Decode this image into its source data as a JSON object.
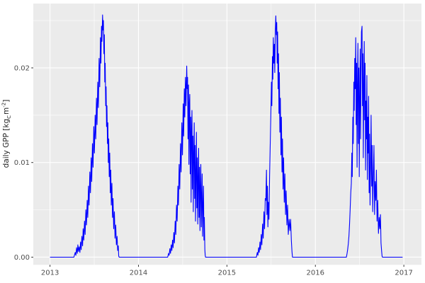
{
  "chart_data": {
    "type": "line",
    "title": "",
    "xlabel": "",
    "ylabel": "daily GPP [kg_C m^-2]",
    "ylabel_parts": {
      "pre": "daily GPP [kg",
      "sub": "C",
      "mid": "m",
      "sup": "-2",
      "post": "]"
    },
    "x_tick_labels": [
      "2013",
      "2014",
      "2015",
      "2016",
      "2017"
    ],
    "x_tick_values": [
      2013,
      2014,
      2015,
      2016,
      2017
    ],
    "x_minor_values": [
      2013.5,
      2014.5,
      2015.5,
      2016.5
    ],
    "y_tick_labels": [
      "0.00",
      "0.01",
      "0.02"
    ],
    "y_tick_values": [
      0,
      0.01,
      0.02
    ],
    "y_minor_values": [
      0.005,
      0.015,
      0.025
    ],
    "xlim": [
      2012.811,
      2017.199
    ],
    "ylim": [
      -0.00081,
      0.0268
    ],
    "grid": "on",
    "legend": "none",
    "colors": {
      "line": "#0000FF",
      "panel_bg": "#EBEBEB",
      "grid": "#FFFFFF",
      "tick_text": "#4D4D4D",
      "tick_mark": "#333333",
      "outer_bg": "#FFFFFF"
    },
    "series": [
      {
        "name": "daily GPP",
        "points": [
          [
            2013.0,
            0
          ],
          [
            2013.27,
            0
          ],
          [
            2013.285,
            0.0005
          ],
          [
            2013.292,
            0.0002
          ],
          [
            2013.3,
            0.001
          ],
          [
            2013.308,
            0.0004
          ],
          [
            2013.315,
            0.0013
          ],
          [
            2013.322,
            0.0006
          ],
          [
            2013.33,
            0.0011
          ],
          [
            2013.338,
            0.0005
          ],
          [
            2013.345,
            0.0016
          ],
          [
            2013.352,
            0.0008
          ],
          [
            2013.36,
            0.0022
          ],
          [
            2013.368,
            0.0012
          ],
          [
            2013.375,
            0.003
          ],
          [
            2013.382,
            0.0018
          ],
          [
            2013.39,
            0.0038
          ],
          [
            2013.397,
            0.0024
          ],
          [
            2013.405,
            0.005
          ],
          [
            2013.412,
            0.0034
          ],
          [
            2013.42,
            0.006
          ],
          [
            2013.427,
            0.0042
          ],
          [
            2013.435,
            0.0075
          ],
          [
            2013.442,
            0.0055
          ],
          [
            2013.45,
            0.009
          ],
          [
            2013.457,
            0.0068
          ],
          [
            2013.465,
            0.0105
          ],
          [
            2013.472,
            0.008
          ],
          [
            2013.48,
            0.012
          ],
          [
            2013.487,
            0.0095
          ],
          [
            2013.495,
            0.0138
          ],
          [
            2013.502,
            0.011
          ],
          [
            2013.51,
            0.015
          ],
          [
            2013.517,
            0.0125
          ],
          [
            2013.525,
            0.0168
          ],
          [
            2013.532,
            0.014
          ],
          [
            2013.54,
            0.0185
          ],
          [
            2013.547,
            0.0158
          ],
          [
            2013.555,
            0.021
          ],
          [
            2013.562,
            0.018
          ],
          [
            2013.57,
            0.0232
          ],
          [
            2013.576,
            0.0205
          ],
          [
            2013.582,
            0.0244
          ],
          [
            2013.587,
            0.0228
          ],
          [
            2013.594,
            0.0256
          ],
          [
            2013.599,
            0.024
          ],
          [
            2013.604,
            0.025
          ],
          [
            2013.609,
            0.0215
          ],
          [
            2013.614,
            0.0235
          ],
          [
            2013.619,
            0.0185
          ],
          [
            2013.624,
            0.0205
          ],
          [
            2013.629,
            0.016
          ],
          [
            2013.634,
            0.018
          ],
          [
            2013.639,
            0.0138
          ],
          [
            2013.644,
            0.016
          ],
          [
            2013.649,
            0.012
          ],
          [
            2013.654,
            0.0142
          ],
          [
            2013.659,
            0.01
          ],
          [
            2013.664,
            0.0125
          ],
          [
            2013.669,
            0.0085
          ],
          [
            2013.675,
            0.011
          ],
          [
            2013.681,
            0.0068
          ],
          [
            2013.687,
            0.0092
          ],
          [
            2013.693,
            0.0055
          ],
          [
            2013.7,
            0.0078
          ],
          [
            2013.706,
            0.0042
          ],
          [
            2013.713,
            0.0062
          ],
          [
            2013.72,
            0.003
          ],
          [
            2013.728,
            0.0048
          ],
          [
            2013.735,
            0.002
          ],
          [
            2013.743,
            0.0034
          ],
          [
            2013.75,
            0.0013
          ],
          [
            2013.758,
            0.0022
          ],
          [
            2013.765,
            0.0007
          ],
          [
            2013.772,
            0.0012
          ],
          [
            2013.777,
            0.0001
          ],
          [
            2013.782,
            0
          ],
          [
            2014.33,
            0
          ],
          [
            2014.34,
            0.0004
          ],
          [
            2014.347,
            0.0002
          ],
          [
            2014.355,
            0.0009
          ],
          [
            2014.362,
            0.0004
          ],
          [
            2014.37,
            0.0013
          ],
          [
            2014.377,
            0.0007
          ],
          [
            2014.385,
            0.0018
          ],
          [
            2014.392,
            0.001
          ],
          [
            2014.4,
            0.0026
          ],
          [
            2014.407,
            0.0015
          ],
          [
            2014.415,
            0.0038
          ],
          [
            2014.422,
            0.0024
          ],
          [
            2014.43,
            0.0055
          ],
          [
            2014.437,
            0.0038
          ],
          [
            2014.445,
            0.0075
          ],
          [
            2014.452,
            0.0055
          ],
          [
            2014.46,
            0.0098
          ],
          [
            2014.467,
            0.0072
          ],
          [
            2014.475,
            0.012
          ],
          [
            2014.482,
            0.009
          ],
          [
            2014.49,
            0.0142
          ],
          [
            2014.497,
            0.0108
          ],
          [
            2014.505,
            0.0162
          ],
          [
            2014.511,
            0.0128
          ],
          [
            2014.518,
            0.0178
          ],
          [
            2014.524,
            0.0148
          ],
          [
            2014.531,
            0.019
          ],
          [
            2014.537,
            0.016
          ],
          [
            2014.545,
            0.0202
          ],
          [
            2014.55,
            0.0178
          ],
          [
            2014.555,
            0.019
          ],
          [
            2014.56,
            0.0125
          ],
          [
            2014.565,
            0.0182
          ],
          [
            2014.57,
            0.0098
          ],
          [
            2014.575,
            0.0162
          ],
          [
            2014.58,
            0.0172
          ],
          [
            2014.585,
            0.0088
          ],
          [
            2014.59,
            0.0148
          ],
          [
            2014.595,
            0.0058
          ],
          [
            2014.6,
            0.0132
          ],
          [
            2014.605,
            0.0155
          ],
          [
            2014.61,
            0.0072
          ],
          [
            2014.615,
            0.0128
          ],
          [
            2014.62,
            0.0048
          ],
          [
            2014.625,
            0.0108
          ],
          [
            2014.63,
            0.0142
          ],
          [
            2014.635,
            0.0062
          ],
          [
            2014.64,
            0.0118
          ],
          [
            2014.645,
            0.0038
          ],
          [
            2014.65,
            0.0092
          ],
          [
            2014.655,
            0.0132
          ],
          [
            2014.66,
            0.0052
          ],
          [
            2014.665,
            0.0105
          ],
          [
            2014.67,
            0.0035
          ],
          [
            2014.675,
            0.0085
          ],
          [
            2014.68,
            0.0115
          ],
          [
            2014.685,
            0.0042
          ],
          [
            2014.69,
            0.0095
          ],
          [
            2014.695,
            0.0028
          ],
          [
            2014.7,
            0.0072
          ],
          [
            2014.705,
            0.0098
          ],
          [
            2014.71,
            0.0032
          ],
          [
            2014.715,
            0.0062
          ],
          [
            2014.72,
            0.0088
          ],
          [
            2014.725,
            0.0022
          ],
          [
            2014.73,
            0.0055
          ],
          [
            2014.735,
            0.0075
          ],
          [
            2014.74,
            0.0018
          ],
          [
            2014.745,
            0.0042
          ],
          [
            2014.75,
            0.0008
          ],
          [
            2014.754,
            0.0002
          ],
          [
            2014.758,
            0
          ],
          [
            2015.333,
            0
          ],
          [
            2015.343,
            0.0005
          ],
          [
            2015.35,
            0.0002
          ],
          [
            2015.358,
            0.001
          ],
          [
            2015.365,
            0.0005
          ],
          [
            2015.373,
            0.0016
          ],
          [
            2015.38,
            0.0008
          ],
          [
            2015.388,
            0.0024
          ],
          [
            2015.395,
            0.0013
          ],
          [
            2015.403,
            0.0035
          ],
          [
            2015.41,
            0.002
          ],
          [
            2015.418,
            0.0048
          ],
          [
            2015.425,
            0.003
          ],
          [
            2015.433,
            0.0062
          ],
          [
            2015.44,
            0.006
          ],
          [
            2015.447,
            0.0092
          ],
          [
            2015.452,
            0.0045
          ],
          [
            2015.458,
            0.0075
          ],
          [
            2015.463,
            0.0032
          ],
          [
            2015.469,
            0.0058
          ],
          [
            2015.475,
            0.004
          ],
          [
            2015.482,
            0.0085
          ],
          [
            2015.489,
            0.0115
          ],
          [
            2015.496,
            0.0148
          ],
          [
            2015.503,
            0.0185
          ],
          [
            2015.508,
            0.016
          ],
          [
            2015.514,
            0.0212
          ],
          [
            2015.519,
            0.0188
          ],
          [
            2015.525,
            0.0232
          ],
          [
            2015.53,
            0.0205
          ],
          [
            2015.536,
            0.0225
          ],
          [
            2015.541,
            0.0195
          ],
          [
            2015.547,
            0.024
          ],
          [
            2015.553,
            0.0255
          ],
          [
            2015.558,
            0.0235
          ],
          [
            2015.563,
            0.0248
          ],
          [
            2015.568,
            0.0205
          ],
          [
            2015.573,
            0.0238
          ],
          [
            2015.578,
            0.0178
          ],
          [
            2015.583,
            0.0215
          ],
          [
            2015.588,
            0.0152
          ],
          [
            2015.593,
            0.0195
          ],
          [
            2015.598,
            0.0132
          ],
          [
            2015.604,
            0.0168
          ],
          [
            2015.61,
            0.0108
          ],
          [
            2015.616,
            0.0148
          ],
          [
            2015.622,
            0.009
          ],
          [
            2015.628,
            0.0125
          ],
          [
            2015.634,
            0.0072
          ],
          [
            2015.641,
            0.0105
          ],
          [
            2015.648,
            0.0058
          ],
          [
            2015.655,
            0.0088
          ],
          [
            2015.662,
            0.0045
          ],
          [
            2015.67,
            0.007
          ],
          [
            2015.678,
            0.0034
          ],
          [
            2015.686,
            0.0055
          ],
          [
            2015.694,
            0.0024
          ],
          [
            2015.703,
            0.004
          ],
          [
            2015.712,
            0.0028
          ],
          [
            2015.72,
            0.004
          ],
          [
            2015.728,
            0.0018
          ],
          [
            2015.735,
            0.0006
          ],
          [
            2015.741,
            0
          ],
          [
            2016.35,
            0
          ],
          [
            2016.358,
            0.0004
          ],
          [
            2016.365,
            0.0008
          ],
          [
            2016.372,
            0.0014
          ],
          [
            2016.379,
            0.0022
          ],
          [
            2016.386,
            0.0035
          ],
          [
            2016.393,
            0.005
          ],
          [
            2016.4,
            0.0068
          ],
          [
            2016.406,
            0.0078
          ],
          [
            2016.412,
            0.011
          ],
          [
            2016.417,
            0.0085
          ],
          [
            2016.423,
            0.0148
          ],
          [
            2016.428,
            0.012
          ],
          [
            2016.434,
            0.0185
          ],
          [
            2016.439,
            0.0155
          ],
          [
            2016.445,
            0.021
          ],
          [
            2016.45,
            0.0178
          ],
          [
            2016.456,
            0.0232
          ],
          [
            2016.461,
            0.014
          ],
          [
            2016.466,
            0.0205
          ],
          [
            2016.471,
            0.0095
          ],
          [
            2016.476,
            0.018
          ],
          [
            2016.481,
            0.0226
          ],
          [
            2016.486,
            0.012
          ],
          [
            2016.491,
            0.02
          ],
          [
            2016.496,
            0.0085
          ],
          [
            2016.501,
            0.0165
          ],
          [
            2016.506,
            0.022
          ],
          [
            2016.511,
            0.0125
          ],
          [
            2016.516,
            0.0195
          ],
          [
            2016.521,
            0.0238
          ],
          [
            2016.527,
            0.0244
          ],
          [
            2016.532,
            0.016
          ],
          [
            2016.537,
            0.0215
          ],
          [
            2016.542,
            0.0105
          ],
          [
            2016.547,
            0.0185
          ],
          [
            2016.552,
            0.0228
          ],
          [
            2016.557,
            0.0145
          ],
          [
            2016.562,
            0.0205
          ],
          [
            2016.567,
            0.0092
          ],
          [
            2016.572,
            0.0165
          ],
          [
            2016.577,
            0.0125
          ],
          [
            2016.582,
            0.0192
          ],
          [
            2016.587,
            0.0082
          ],
          [
            2016.592,
            0.0148
          ],
          [
            2016.597,
            0.011
          ],
          [
            2016.602,
            0.017
          ],
          [
            2016.607,
            0.0068
          ],
          [
            2016.612,
            0.013
          ],
          [
            2016.618,
            0.0055
          ],
          [
            2016.624,
            0.0098
          ],
          [
            2016.63,
            0.015
          ],
          [
            2016.636,
            0.0075
          ],
          [
            2016.642,
            0.0118
          ],
          [
            2016.648,
            0.0048
          ],
          [
            2016.655,
            0.0088
          ],
          [
            2016.662,
            0.0118
          ],
          [
            2016.669,
            0.0045
          ],
          [
            2016.676,
            0.008
          ],
          [
            2016.683,
            0.006
          ],
          [
            2016.69,
            0.0092
          ],
          [
            2016.697,
            0.0038
          ],
          [
            2016.705,
            0.006
          ],
          [
            2016.713,
            0.0025
          ],
          [
            2016.721,
            0.0042
          ],
          [
            2016.728,
            0.003
          ],
          [
            2016.735,
            0.0045
          ],
          [
            2016.742,
            0.0015
          ],
          [
            2016.749,
            0.0006
          ],
          [
            2016.754,
            0.0001
          ],
          [
            2016.758,
            0
          ],
          [
            2016.986,
            0
          ]
        ]
      }
    ]
  }
}
